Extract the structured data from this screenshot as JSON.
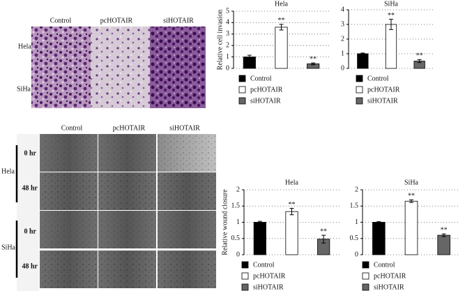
{
  "chart_data": [
    {
      "type": "bar",
      "title": "Hela",
      "ylabel": "Relative cell invasion",
      "categories": [
        "Control",
        "pcHOTAIR",
        "siHOTAIR"
      ],
      "values": [
        1.0,
        3.6,
        0.4
      ],
      "errors": [
        0.15,
        0.25,
        0.08
      ],
      "colors": [
        "#000000",
        "#ffffff",
        "#666666"
      ],
      "significance": [
        null,
        "**",
        "**"
      ],
      "ylim": [
        0,
        5
      ],
      "yticks": [
        0,
        1,
        2,
        3,
        4,
        5
      ],
      "grid": true
    },
    {
      "type": "bar",
      "title": "SiHa",
      "categories": [
        "Control",
        "pcHOTAIR",
        "siHOTAIR"
      ],
      "values": [
        1.0,
        3.0,
        0.5
      ],
      "errors": [
        0.05,
        0.35,
        0.1
      ],
      "colors": [
        "#000000",
        "#ffffff",
        "#666666"
      ],
      "significance": [
        null,
        "**",
        "**"
      ],
      "ylim": [
        0,
        4
      ],
      "yticks": [
        0,
        1,
        2,
        3,
        4
      ],
      "grid": true
    },
    {
      "type": "bar",
      "title": "Hela",
      "ylabel": "Relative wound closure",
      "categories": [
        "Control",
        "pcHOTAIR",
        "siHOTAIR"
      ],
      "values": [
        1.0,
        1.33,
        0.48
      ],
      "errors": [
        0.03,
        0.1,
        0.12
      ],
      "colors": [
        "#000000",
        "#ffffff",
        "#666666"
      ],
      "significance": [
        null,
        "**",
        "**"
      ],
      "ylim": [
        0,
        2
      ],
      "yticks": [
        0,
        0.5,
        1,
        1.5,
        2
      ],
      "grid": true
    },
    {
      "type": "bar",
      "title": "SiHa",
      "categories": [
        "Control",
        "pcHOTAIR",
        "siHOTAIR"
      ],
      "values": [
        1.0,
        1.65,
        0.6
      ],
      "errors": [
        0.02,
        0.04,
        0.04
      ],
      "colors": [
        "#000000",
        "#ffffff",
        "#666666"
      ],
      "significance": [
        null,
        "**",
        "**"
      ],
      "ylim": [
        0,
        2
      ],
      "yticks": [
        0,
        0.5,
        1,
        1.5,
        2
      ],
      "grid": true
    }
  ],
  "invasion_images": {
    "columns": [
      "Control",
      "pcHOTAIR",
      "siHOTAIR"
    ],
    "rows": [
      "Hela",
      "SiHa"
    ]
  },
  "wound_images": {
    "columns": [
      "Control",
      "pcHOTAIR",
      "siHOTAIR"
    ],
    "cell_lines": [
      "Hela",
      "SiHa"
    ],
    "times": [
      "0 hr",
      "48 hr",
      "0 hr",
      "48 hr"
    ]
  }
}
